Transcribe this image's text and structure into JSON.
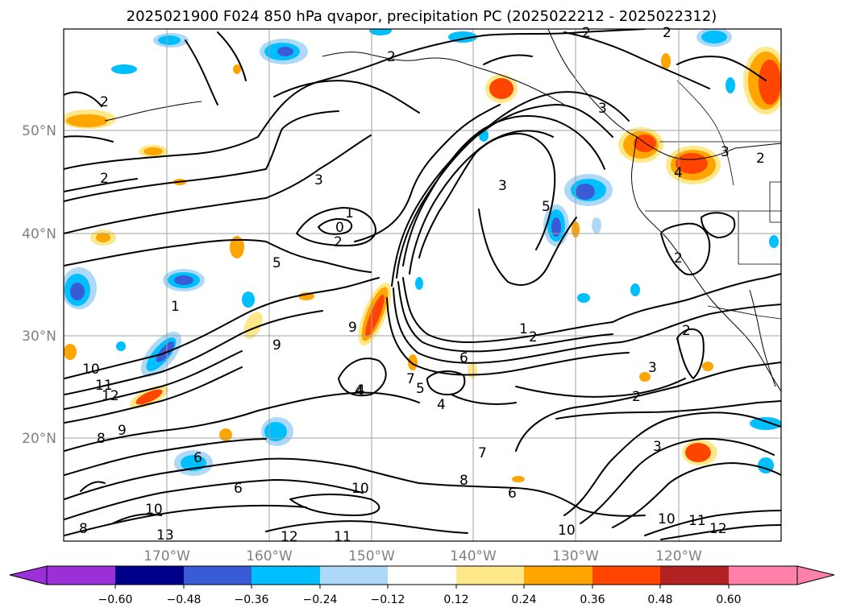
{
  "title": "2025021900 F024 850 hPa qvapor, precipitation PC (2025022212 - 2025022312)",
  "longitude_labels": [
    "170°W",
    "160°W",
    "150°W",
    "140°W",
    "130°W",
    "120°W"
  ],
  "latitude_labels": [
    "50°N",
    "40°N",
    "30°N",
    "20°N"
  ],
  "colorbar": {
    "tick_labels": [
      "−0.60",
      "−0.48",
      "−0.36",
      "−0.24",
      "−0.12",
      "0.12",
      "0.24",
      "0.36",
      "0.48",
      "0.60"
    ],
    "colors": [
      "#9b30d9",
      "#00008b",
      "#3a5bd6",
      "#00bfff",
      "#add8f7",
      "#ffffff",
      "#ffe88a",
      "#ffa500",
      "#ff4500",
      "#b22222",
      "#ff80a8"
    ]
  },
  "contour_labels": [
    "2",
    "2",
    "2",
    "2",
    "2",
    "3",
    "1",
    "0",
    "2",
    "5",
    "3",
    "4",
    "5",
    "9",
    "9",
    "10",
    "11",
    "12",
    "1",
    "2",
    "6",
    "7",
    "5",
    "4",
    "4",
    "7",
    "2",
    "3",
    "2",
    "3",
    "8",
    "6",
    "10",
    "10",
    "11",
    "12",
    "10",
    "8",
    "6",
    "9",
    "10",
    "13",
    "8",
    "12",
    "11",
    "1",
    "3",
    "2",
    "4",
    "3",
    "2",
    "6"
  ]
}
